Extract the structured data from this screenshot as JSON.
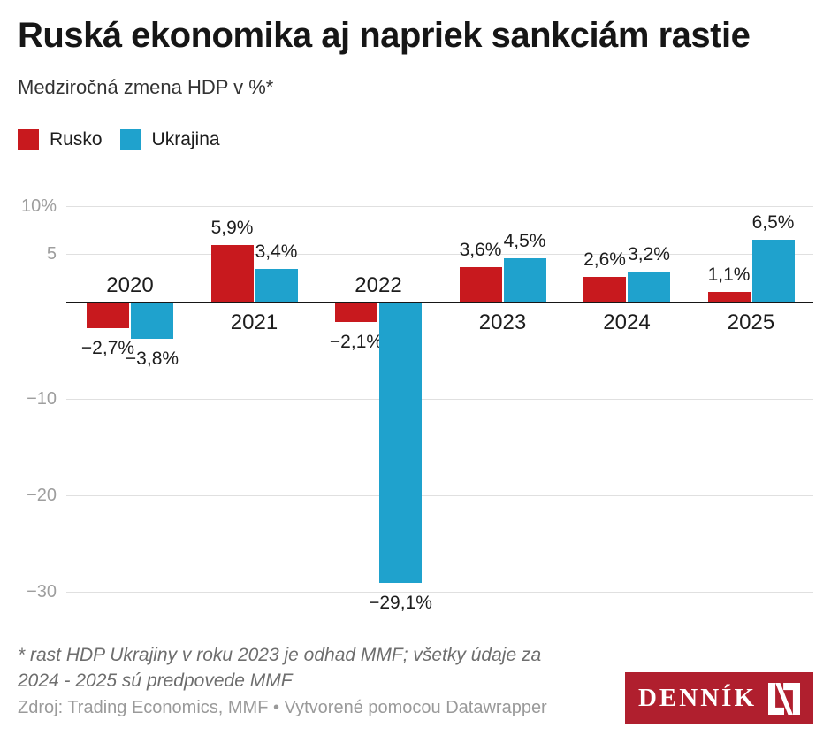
{
  "chart_data": {
    "type": "bar",
    "title": "Ruská ekonomika aj napriek sankciám rastie",
    "subtitle": "Medziročná zmena HDP v %*",
    "categories": [
      "2020",
      "2021",
      "2022",
      "2023",
      "2024",
      "2025"
    ],
    "series": [
      {
        "name": "Rusko",
        "color": "#c8191e",
        "values": [
          -2.7,
          5.9,
          -2.1,
          3.6,
          2.6,
          1.1
        ],
        "value_labels": [
          "−2,7%",
          "5,9%",
          "−2,1%",
          "3,6%",
          "2,6%",
          "1,1%"
        ]
      },
      {
        "name": "Ukrajina",
        "color": "#1fa2cd",
        "values": [
          -3.8,
          3.4,
          -29.1,
          4.5,
          3.2,
          6.5
        ],
        "value_labels": [
          "−3,8%",
          "3,4%",
          "−29,1%",
          "4,5%",
          "3,2%",
          "6,5%"
        ]
      }
    ],
    "y_axis": {
      "ticks": [
        10,
        5,
        -10,
        -20,
        -30
      ],
      "tick_labels": [
        "10%",
        "5",
        "−10",
        "−20",
        "−30"
      ],
      "range": [
        -30,
        10
      ],
      "unit": "%",
      "baseline": 0
    },
    "grid": true,
    "legend_position": "top-left"
  },
  "colors": {
    "rusko_red": "#c8191e",
    "ukrajina_blue": "#1fa2cd",
    "logo_background": "#b01f2e",
    "axis_line": "#161616"
  },
  "footer": {
    "footnote_lines": [
      "* rast HDP Ukrajiny v roku 2023 je odhad MMF; všetky údaje za",
      "2024 - 2025 sú predpovede MMF"
    ],
    "source": "Zdroj: Trading Economics, MMF • Vytvorené pomocou Datawrapper",
    "logo_text": "DENNÍK"
  }
}
